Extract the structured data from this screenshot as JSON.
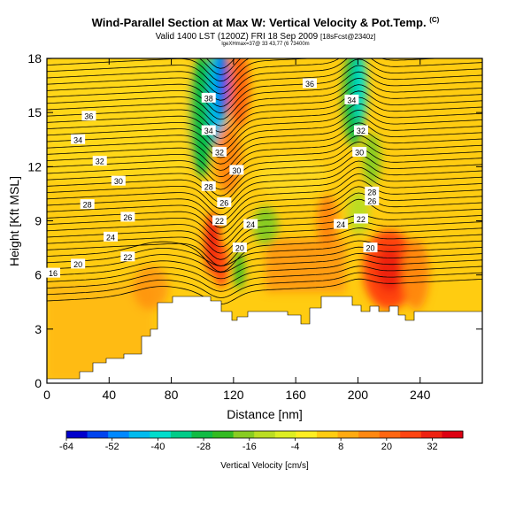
{
  "header": {
    "title": "Wind-Parallel Section at Max W: Vertical Velocity & Pot.Temp.",
    "title_mark": "(C)",
    "valid_line": "Valid 1400 LST (1200Z) FRI 18 Sep 2009",
    "valid_suffix": "[18sFcst@2340z]",
    "coords_line": "lgeXHmax=37@ 33 43,77 (6 73400m"
  },
  "chart_data": {
    "type": "heatmap",
    "xlabel": "Distance [nm]",
    "ylabel": "Height [Kft MSL]",
    "xlim": [
      0,
      280
    ],
    "ylim": [
      0,
      18
    ],
    "xticks": [
      0,
      40,
      80,
      120,
      160,
      200,
      240
    ],
    "yticks": [
      0,
      3,
      6,
      9,
      12,
      15,
      18
    ],
    "colorbar": {
      "label": "Vertical Velocity [cm/s]",
      "ticks": [
        -64,
        -52,
        -40,
        -28,
        -16,
        -4,
        8,
        20,
        32
      ],
      "range": [
        -64,
        40
      ],
      "colors": [
        "#0000cc",
        "#0044ee",
        "#0088ff",
        "#00bbee",
        "#00ddcc",
        "#00cc88",
        "#11bb44",
        "#33bb22",
        "#88cc22",
        "#bbdd22",
        "#ddee22",
        "#ffee22",
        "#ffcc11",
        "#ffaa11",
        "#ff8811",
        "#ff6611",
        "#ff4411",
        "#ee2211",
        "#dd0011"
      ]
    },
    "isentrope_labels": [
      {
        "value": "16",
        "x": 4,
        "y": 6.1
      },
      {
        "value": "20",
        "x": 20,
        "y": 6.6
      },
      {
        "value": "22",
        "x": 52,
        "y": 7.0
      },
      {
        "value": "24",
        "x": 41,
        "y": 8.1
      },
      {
        "value": "26",
        "x": 52,
        "y": 9.2
      },
      {
        "value": "28",
        "x": 26,
        "y": 9.9
      },
      {
        "value": "30",
        "x": 46,
        "y": 11.2
      },
      {
        "value": "32",
        "x": 34,
        "y": 12.3
      },
      {
        "value": "34",
        "x": 20,
        "y": 13.5
      },
      {
        "value": "36",
        "x": 27,
        "y": 14.8
      },
      {
        "value": "38",
        "x": 104,
        "y": 15.8
      },
      {
        "value": "34",
        "x": 104,
        "y": 14.0
      },
      {
        "value": "32",
        "x": 111,
        "y": 12.8
      },
      {
        "value": "28",
        "x": 104,
        "y": 10.9
      },
      {
        "value": "30",
        "x": 122,
        "y": 11.8
      },
      {
        "value": "26",
        "x": 114,
        "y": 10.0
      },
      {
        "value": "22",
        "x": 111,
        "y": 9.0
      },
      {
        "value": "24",
        "x": 131,
        "y": 8.8
      },
      {
        "value": "20",
        "x": 124,
        "y": 7.5
      },
      {
        "value": "36",
        "x": 169,
        "y": 16.6
      },
      {
        "value": "34",
        "x": 196,
        "y": 15.7
      },
      {
        "value": "32",
        "x": 202,
        "y": 14.0
      },
      {
        "value": "30",
        "x": 201,
        "y": 12.8
      },
      {
        "value": "28",
        "x": 209,
        "y": 10.6
      },
      {
        "value": "26",
        "x": 209,
        "y": 10.1
      },
      {
        "value": "22",
        "x": 202,
        "y": 9.1
      },
      {
        "value": "24",
        "x": 189,
        "y": 8.8
      },
      {
        "value": "20",
        "x": 208,
        "y": 7.5
      }
    ]
  }
}
